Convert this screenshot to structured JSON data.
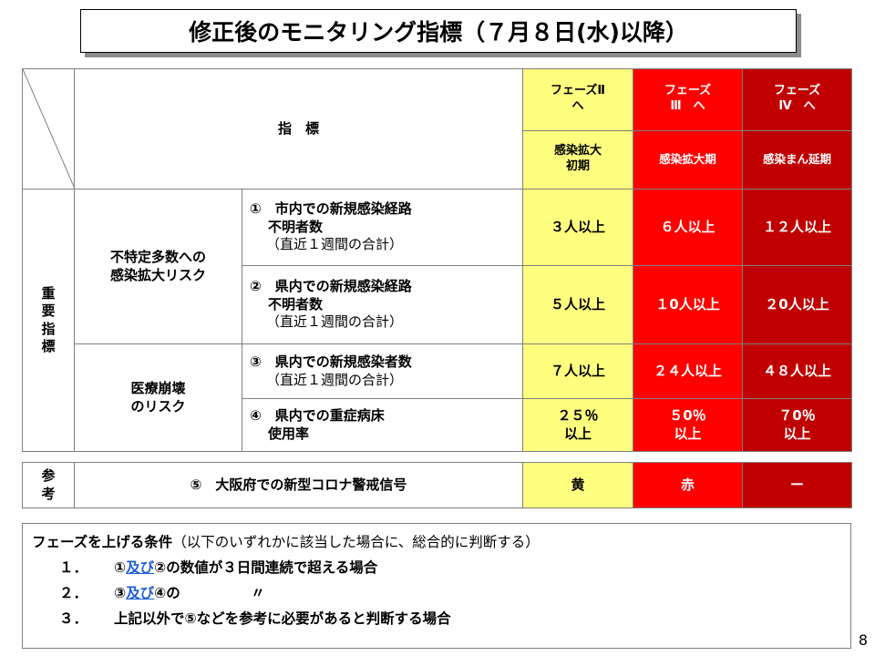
{
  "title": "修正後のモニタリング指標（７月８日(水)以降）",
  "header": {
    "index_label": "指　標",
    "phase2": "フェーズⅡ へ",
    "phase2_l1": "フェーズⅡ",
    "phase2_l2": "へ",
    "phase3_l1": "フェーズ",
    "phase3_l2": "Ⅲ　へ",
    "phase4_l1": "フェーズ",
    "phase4_l2": "Ⅳ　へ",
    "stage2_l1": "感染拡大",
    "stage2_l2": "初期",
    "stage3": "感染拡大期",
    "stage4": "感染まん延期"
  },
  "key_label": [
    "重",
    "要",
    "指",
    "標"
  ],
  "groups": [
    {
      "label_l1": "不特定多数への",
      "label_l2": "感染拡大リスク"
    },
    {
      "label_l1": "医療崩壊",
      "label_l2": "のリスク"
    }
  ],
  "rows": [
    {
      "num": "①",
      "l1": "市内での新規感染経路",
      "l2": "不明者数",
      "l3": "（直近１週間の合計）",
      "p2": "３人以上",
      "p3": "６人以上",
      "p4": "１２人以上"
    },
    {
      "num": "②",
      "l1": "県内での新規感染経路",
      "l2": "不明者数",
      "l3": "（直近１週間の合計）",
      "p2": "５人以上",
      "p3": "１0人以上",
      "p4": "２0人以上"
    },
    {
      "num": "③",
      "l1": "県内での新規感染者数",
      "l2": "（直近１週間の合計）",
      "p2": "７人以上",
      "p3": "２４人以上",
      "p4": "４８人以上"
    },
    {
      "num": "④",
      "l1": "県内での重症病床",
      "l2": "使用率",
      "p2_l1": "２５％",
      "p2_l2": "以上",
      "p3_l1": "５0％",
      "p3_l2": "以上",
      "p4_l1": "７0％",
      "p4_l2": "以上"
    }
  ],
  "reference": {
    "label": [
      "参",
      "考"
    ],
    "text": "⑤　大阪府での新型コロナ警戒信号",
    "p2": "黄",
    "p3": "赤",
    "p4": "ー"
  },
  "conditions": {
    "heading": "フェーズを上げる条件",
    "note": "（以下のいずれかに該当した場合に、総合的に判断する）",
    "items": [
      {
        "num": "１．",
        "a": "①",
        "link": "及び",
        "b": "②の数値が３日間連続で超える場合"
      },
      {
        "num": "２．",
        "a": "③",
        "link": "及び",
        "b": "④の　　　　　〃"
      },
      {
        "num": "３．",
        "text": "上記以外で⑤などを参考に必要があると判断する場合"
      }
    ]
  },
  "page_number": "8",
  "colors": {
    "yellow": "#ffff7f",
    "red": "#ff0000",
    "dark_red": "#c00000",
    "link_blue": "#1f5fd2"
  }
}
